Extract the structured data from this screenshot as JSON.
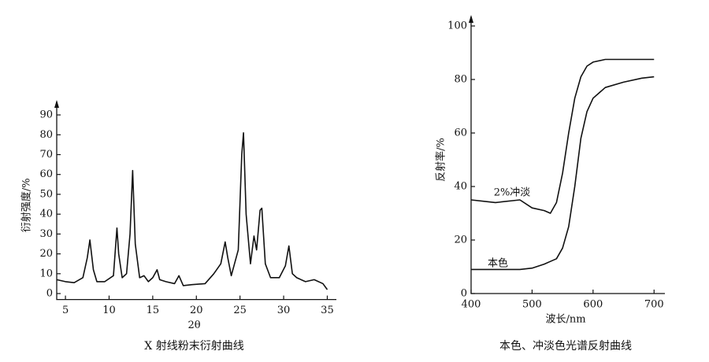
{
  "chart_data": [
    {
      "type": "line",
      "caption": "X 射线粉末衍射曲线",
      "x_label": "2θ",
      "y_label": "衍射强度/%",
      "xlim": [
        4,
        35.5
      ],
      "ylim": [
        -3,
        92
      ],
      "xticks": [
        5,
        10,
        15,
        20,
        25,
        30,
        35
      ],
      "yticks": [
        0,
        10,
        20,
        30,
        40,
        50,
        60,
        70,
        80,
        90
      ],
      "x": [
        4,
        5,
        6,
        7,
        7.5,
        7.8,
        8.2,
        8.6,
        9.5,
        10.5,
        10.9,
        11.1,
        11.5,
        12,
        12.4,
        12.7,
        13.0,
        13.5,
        14,
        14.5,
        15,
        15.5,
        15.8,
        16.5,
        17.5,
        18,
        18.5,
        19.5,
        21,
        22,
        22.8,
        23.3,
        23.6,
        24,
        24.8,
        25.2,
        25.4,
        25.7,
        26.2,
        26.6,
        26.9,
        27.3,
        27.5,
        27.9,
        28.5,
        29.5,
        30.2,
        30.6,
        31,
        31.5,
        32.5,
        33.5,
        34.5,
        35
      ],
      "series": [
        {
          "color": "#111111",
          "values": [
            7,
            6,
            5.5,
            8,
            18,
            27,
            12,
            6,
            6,
            9,
            33,
            20,
            8,
            10,
            30,
            62,
            25,
            8,
            9,
            6,
            8,
            12,
            7,
            6,
            5,
            9,
            4,
            4.5,
            5,
            10,
            15,
            26,
            18,
            9,
            22,
            70,
            81,
            40,
            15,
            29,
            22,
            42,
            43,
            15,
            8,
            8,
            14,
            24,
            10,
            8,
            6,
            7,
            5,
            2
          ]
        }
      ]
    },
    {
      "type": "line",
      "caption": "本色、冲淡色光谱反射曲线",
      "x_label": "波长/nm",
      "y_label": "反射率/%",
      "xlim": [
        400,
        710
      ],
      "ylim": [
        0,
        100
      ],
      "xticks": [
        400,
        500,
        600,
        700
      ],
      "yticks": [
        0,
        20,
        40,
        60,
        80,
        100
      ],
      "x": [
        400,
        440,
        480,
        500,
        520,
        530,
        540,
        550,
        560,
        570,
        580,
        590,
        600,
        620,
        650,
        680,
        700
      ],
      "series": [
        {
          "name": "2%冲淡",
          "color": "#111111",
          "values": [
            35,
            34,
            35,
            32,
            31,
            30,
            34,
            45,
            60,
            73,
            81,
            85,
            86.5,
            87.5,
            87.5,
            87.5,
            87.5
          ]
        },
        {
          "name": "本色",
          "color": "#111111",
          "values": [
            9,
            9,
            9,
            9.5,
            11,
            12,
            13,
            17,
            25,
            40,
            58,
            68,
            73,
            77,
            79,
            80.5,
            81
          ]
        }
      ]
    }
  ]
}
